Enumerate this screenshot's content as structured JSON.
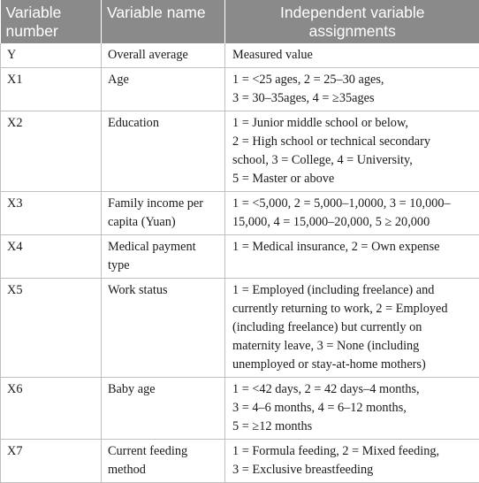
{
  "headers": {
    "variable_number": [
      "Variable",
      "number"
    ],
    "variable_name": "Variable name",
    "assignments": [
      "Independent variable",
      "assignments"
    ]
  },
  "rows": [
    {
      "number": "Y",
      "name": [
        "Overall average"
      ],
      "assignment": [
        "Measured value"
      ]
    },
    {
      "number": "X1",
      "name": [
        "Age"
      ],
      "assignment": [
        "1 = <25 ages, 2 = 25–30 ages,",
        "3 = 30–35ages, 4 = ≥35ages"
      ]
    },
    {
      "number": "X2",
      "name": [
        "Education"
      ],
      "assignment": [
        "1 = Junior middle school or below,",
        "2 = High school or technical secondary",
        "school, 3 = College, 4 = University,",
        "5 = Master or above"
      ]
    },
    {
      "number": "X3",
      "name": [
        "Family income per",
        "capita (Yuan)"
      ],
      "assignment": [
        "1 = <5,000, 2 = 5,000–1,0000, 3 = 10,000–",
        "15,000, 4 = 15,000–20,000, 5 ≥ 20,000"
      ]
    },
    {
      "number": "X4",
      "name": [
        "Medical payment",
        "type"
      ],
      "assignment": [
        "1 = Medical insurance, 2 = Own expense"
      ]
    },
    {
      "number": "X5",
      "name": [
        "Work status"
      ],
      "assignment": [
        "1 = Employed (including freelance) and",
        "currently returning to work, 2 = Employed",
        "(including freelance) but currently on",
        "maternity leave, 3 = None (including",
        "unemployed or stay-at-home mothers)"
      ]
    },
    {
      "number": "X6",
      "name": [
        "Baby age"
      ],
      "assignment": [
        "1 = <42 days, 2 = 42 days–4 months,",
        "3 = 4–6 months, 4 = 6–12 months,",
        "5 = ≥12 months"
      ]
    },
    {
      "number": "X7",
      "name": [
        "Current feeding",
        "method"
      ],
      "assignment": [
        "1 = Formula feeding, 2 = Mixed feeding,",
        "3 = Exclusive breastfeeding"
      ]
    }
  ]
}
